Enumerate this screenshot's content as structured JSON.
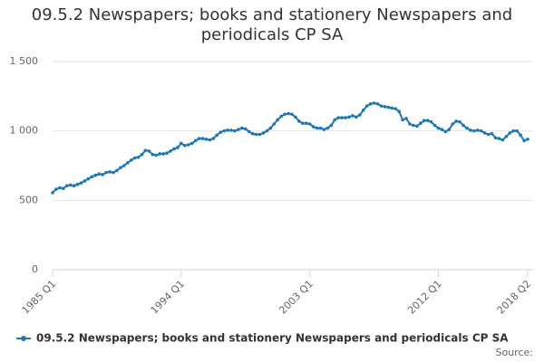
{
  "chart_data": {
    "type": "line",
    "title": "09.5.2 Newspapers; books and stationery Newspapers and periodicals CP SA",
    "source": "Source:",
    "categories": [
      "1985 Q1",
      null,
      null,
      null,
      null,
      null,
      null,
      null,
      null,
      null,
      null,
      null,
      null,
      null,
      null,
      null,
      null,
      null,
      null,
      null,
      null,
      null,
      null,
      null,
      null,
      null,
      null,
      null,
      null,
      null,
      null,
      null,
      null,
      null,
      null,
      null,
      "1994 Q1",
      null,
      null,
      null,
      null,
      null,
      null,
      null,
      null,
      null,
      null,
      null,
      null,
      null,
      null,
      null,
      null,
      null,
      null,
      null,
      null,
      null,
      null,
      null,
      null,
      null,
      null,
      null,
      null,
      null,
      null,
      null,
      null,
      null,
      null,
      null,
      "2003 Q1",
      null,
      null,
      null,
      null,
      null,
      null,
      null,
      null,
      null,
      null,
      null,
      null,
      null,
      null,
      null,
      null,
      null,
      null,
      null,
      null,
      null,
      null,
      null,
      null,
      null,
      null,
      null,
      null,
      null,
      null,
      null,
      null,
      null,
      null,
      null,
      "2012 Q1",
      null,
      null,
      null,
      null,
      null,
      null,
      null,
      null,
      null,
      null,
      null,
      null,
      null,
      null,
      null,
      null,
      null,
      null,
      null,
      null,
      null,
      null,
      null,
      null,
      "2018 Q2"
    ],
    "series": [
      {
        "name": "09.5.2 Newspapers; books and stationery Newspapers and periodicals CP SA",
        "color": "#1f78b4",
        "values": [
          555,
          580,
          590,
          585,
          605,
          610,
          605,
          615,
          625,
          640,
          655,
          670,
          680,
          690,
          685,
          700,
          705,
          700,
          715,
          735,
          750,
          770,
          790,
          805,
          810,
          830,
          860,
          855,
          830,
          825,
          835,
          835,
          840,
          855,
          870,
          880,
          910,
          895,
          900,
          910,
          930,
          945,
          945,
          940,
          935,
          945,
          970,
          990,
          1000,
          1005,
          1005,
          1000,
          1010,
          1020,
          1015,
          995,
          980,
          975,
          975,
          985,
          1000,
          1020,
          1050,
          1080,
          1105,
          1120,
          1125,
          1120,
          1100,
          1070,
          1055,
          1055,
          1050,
          1030,
          1020,
          1020,
          1010,
          1020,
          1040,
          1080,
          1095,
          1095,
          1095,
          1100,
          1110,
          1100,
          1115,
          1150,
          1180,
          1195,
          1200,
          1195,
          1180,
          1175,
          1170,
          1165,
          1160,
          1140,
          1080,
          1090,
          1050,
          1040,
          1035,
          1055,
          1075,
          1075,
          1065,
          1040,
          1020,
          1010,
          995,
          1010,
          1050,
          1070,
          1065,
          1040,
          1020,
          1005,
          1000,
          1005,
          1000,
          985,
          975,
          980,
          950,
          945,
          935,
          960,
          985,
          1000,
          1000,
          970,
          930,
          940
        ]
      }
    ],
    "ylim": [
      0,
      1500
    ],
    "yticks": [
      0,
      500,
      {
        "value": 1000,
        "label": "1 000"
      },
      {
        "value": 1500,
        "label": "1 500"
      }
    ],
    "grid": true
  }
}
